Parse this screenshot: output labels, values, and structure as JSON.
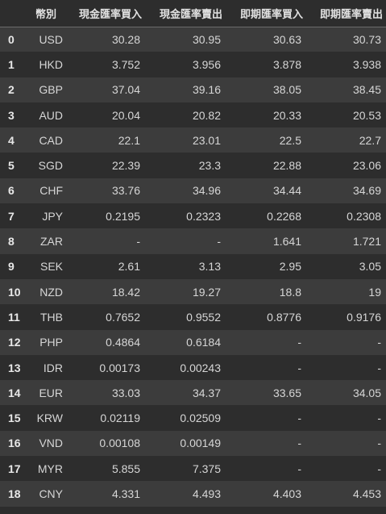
{
  "table": {
    "headers": [
      "",
      "幣別",
      "現金匯率買入",
      "現金匯率賣出",
      "即期匯率買入",
      "即期匯率賣出"
    ],
    "rows": [
      [
        "0",
        "USD",
        "30.28",
        "30.95",
        "30.63",
        "30.73"
      ],
      [
        "1",
        "HKD",
        "3.752",
        "3.956",
        "3.878",
        "3.938"
      ],
      [
        "2",
        "GBP",
        "37.04",
        "39.16",
        "38.05",
        "38.45"
      ],
      [
        "3",
        "AUD",
        "20.04",
        "20.82",
        "20.33",
        "20.53"
      ],
      [
        "4",
        "CAD",
        "22.1",
        "23.01",
        "22.5",
        "22.7"
      ],
      [
        "5",
        "SGD",
        "22.39",
        "23.3",
        "22.88",
        "23.06"
      ],
      [
        "6",
        "CHF",
        "33.76",
        "34.96",
        "34.44",
        "34.69"
      ],
      [
        "7",
        "JPY",
        "0.2195",
        "0.2323",
        "0.2268",
        "0.2308"
      ],
      [
        "8",
        "ZAR",
        "-",
        "-",
        "1.641",
        "1.721"
      ],
      [
        "9",
        "SEK",
        "2.61",
        "3.13",
        "2.95",
        "3.05"
      ],
      [
        "10",
        "NZD",
        "18.42",
        "19.27",
        "18.8",
        "19"
      ],
      [
        "11",
        "THB",
        "0.7652",
        "0.9552",
        "0.8776",
        "0.9176"
      ],
      [
        "12",
        "PHP",
        "0.4864",
        "0.6184",
        "-",
        "-"
      ],
      [
        "13",
        "IDR",
        "0.00173",
        "0.00243",
        "-",
        "-"
      ],
      [
        "14",
        "EUR",
        "33.03",
        "34.37",
        "33.65",
        "34.05"
      ],
      [
        "15",
        "KRW",
        "0.02119",
        "0.02509",
        "-",
        "-"
      ],
      [
        "16",
        "VND",
        "0.00108",
        "0.00149",
        "-",
        "-"
      ],
      [
        "17",
        "MYR",
        "5.855",
        "7.375",
        "-",
        "-"
      ],
      [
        "18",
        "CNY",
        "4.331",
        "4.493",
        "4.403",
        "4.453"
      ]
    ]
  }
}
